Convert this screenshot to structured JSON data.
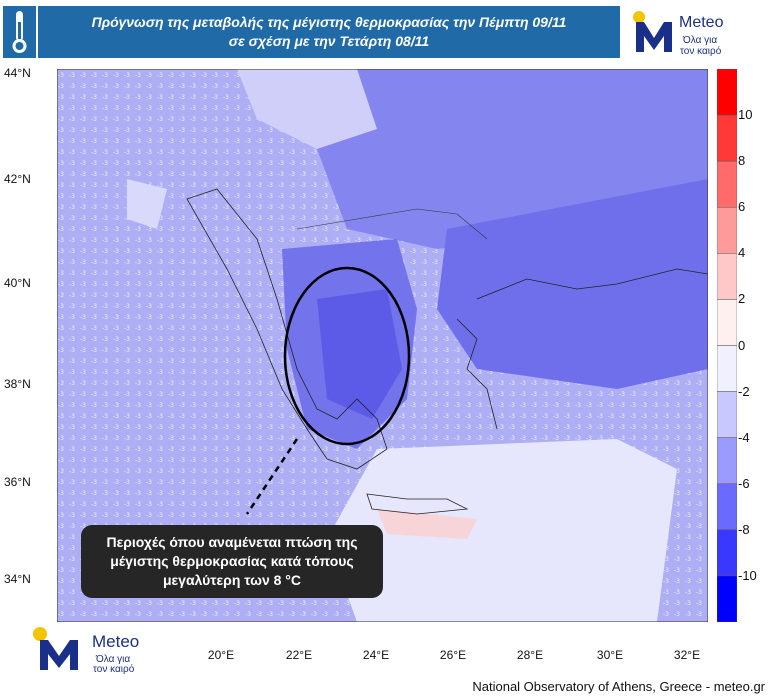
{
  "title": {
    "line1": "Πρόγνωση της μεταβολής της μέγιστης θερμοκρασίας την Πέμπτη 09/11",
    "line2": "σε σχέση με την Τετάρτη 08/11"
  },
  "logo": {
    "brand": "Meteo",
    "tagline_1": "Όλα για",
    "tagline_2": "τον καιρό"
  },
  "latitude_labels": [
    "44°N",
    "42°N",
    "40°N",
    "38°N",
    "36°N",
    "34°N"
  ],
  "longitude_labels": [
    "20°E",
    "22°E",
    "24°E",
    "26°E",
    "28°E",
    "30°E",
    "32°E"
  ],
  "colorbar": {
    "labels": [
      "10",
      "8",
      "6",
      "4",
      "2",
      "0",
      "-2",
      "-4",
      "-6",
      "-8",
      "-10"
    ],
    "colors": [
      "#ff0000",
      "#ff3838",
      "#ff6a6a",
      "#ff9a9a",
      "#ffc8c8",
      "#fff0f0",
      "#f0f0ff",
      "#c8c8ff",
      "#9a9aff",
      "#6a6aff",
      "#3838ff",
      "#0000ff"
    ]
  },
  "callout": {
    "line1": "Περιοχές όπου αναμένεται πτώση της",
    "line2": "μέγιστης θερμοκρασίας  κατά τόπους",
    "line3": "μεγαλύτερη των 8 °C"
  },
  "footer": "National Observatory of Athens, Greece - meteo.gr",
  "colors": {
    "brand_blue": "#1f6aa7",
    "logo_navy": "#1a2f8a",
    "logo_yellow": "#f5c400",
    "land_base": "#a7a7f3",
    "sea_base": "#dcdcfb"
  }
}
